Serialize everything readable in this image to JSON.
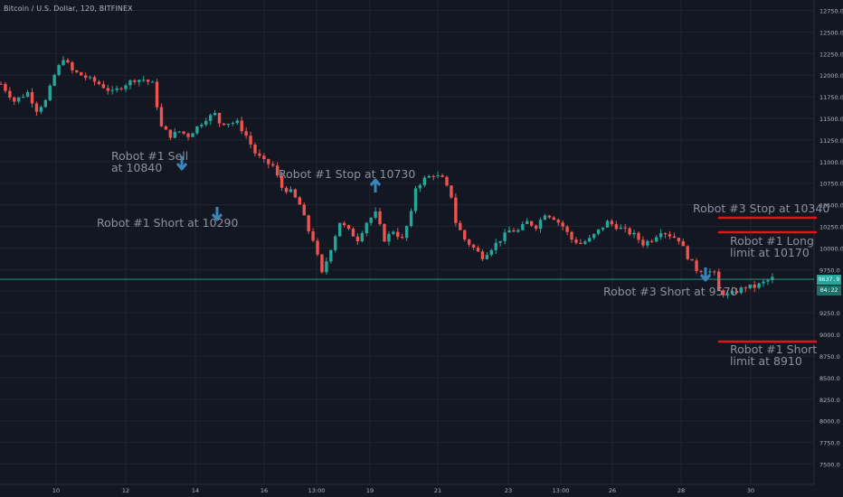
{
  "header": "Bitcoin / U.S. Dollar, 120, BITFINEX",
  "current_price": {
    "label": "9637.9",
    "countdown": "04:22"
  },
  "colors": {
    "bg": "#131722",
    "grid": "#1f2430",
    "up": "#26a69a",
    "down": "#ef5350",
    "arrow": "#3a84ba",
    "line": "#e0161e",
    "pricebadge": "#26a69a"
  },
  "chart_data": {
    "type": "candlestick",
    "y_ticks": [
      "12750.0",
      "12500.0",
      "12250.0",
      "12000.0",
      "11750.0",
      "11500.0",
      "11250.0",
      "11000.0",
      "10750.0",
      "10500.0",
      "10250.0",
      "10000.0",
      "9750.0",
      "9500.0",
      "9250.0",
      "9000.0",
      "8750.0",
      "8500.0",
      "8250.0",
      "8000.0",
      "7750.0",
      "7500.0"
    ],
    "x_ticks": [
      "10",
      "12",
      "14",
      "16",
      "13:00",
      "19",
      "21",
      "23",
      "13:00",
      "26",
      "28",
      "30"
    ],
    "ylim": [
      7400,
      12850
    ],
    "close_path": [
      [
        0,
        11900
      ],
      [
        3,
        11700
      ],
      [
        6,
        11800
      ],
      [
        8,
        11600
      ],
      [
        10,
        11700
      ],
      [
        12,
        12000
      ],
      [
        14,
        12200
      ],
      [
        16,
        12050
      ],
      [
        18,
        12000
      ],
      [
        20,
        11950
      ],
      [
        22,
        11900
      ],
      [
        25,
        11800
      ],
      [
        28,
        11900
      ],
      [
        30,
        11950
      ],
      [
        32,
        11950
      ],
      [
        34,
        11900
      ],
      [
        36,
        11400
      ],
      [
        38,
        11300
      ],
      [
        40,
        11350
      ],
      [
        42,
        11300
      ],
      [
        44,
        11400
      ],
      [
        46,
        11500
      ],
      [
        48,
        11550
      ],
      [
        49,
        11450
      ],
      [
        51,
        11450
      ],
      [
        53,
        11450
      ],
      [
        55,
        11300
      ],
      [
        57,
        11100
      ],
      [
        59,
        11000
      ],
      [
        61,
        10950
      ],
      [
        63,
        10700
      ],
      [
        65,
        10650
      ],
      [
        67,
        10500
      ],
      [
        69,
        10200
      ],
      [
        70,
        10100
      ],
      [
        71,
        9900
      ],
      [
        72,
        9700
      ],
      [
        74,
        10000
      ],
      [
        76,
        10300
      ],
      [
        78,
        10200
      ],
      [
        80,
        10100
      ],
      [
        82,
        10300
      ],
      [
        84,
        10400
      ],
      [
        86,
        10100
      ],
      [
        88,
        10200
      ],
      [
        90,
        10100
      ],
      [
        92,
        10400
      ],
      [
        93,
        10700
      ],
      [
        95,
        10800
      ],
      [
        97,
        10850
      ],
      [
        99,
        10800
      ],
      [
        101,
        10600
      ],
      [
        102,
        10300
      ],
      [
        104,
        10100
      ],
      [
        106,
        10000
      ],
      [
        108,
        9900
      ],
      [
        110,
        10000
      ],
      [
        112,
        10100
      ],
      [
        114,
        10200
      ],
      [
        116,
        10200
      ],
      [
        118,
        10300
      ],
      [
        120,
        10250
      ],
      [
        122,
        10400
      ],
      [
        124,
        10350
      ],
      [
        126,
        10250
      ],
      [
        128,
        10100
      ],
      [
        130,
        10050
      ],
      [
        132,
        10100
      ],
      [
        134,
        10200
      ],
      [
        136,
        10300
      ],
      [
        138,
        10250
      ],
      [
        140,
        10200
      ],
      [
        142,
        10150
      ],
      [
        144,
        10050
      ],
      [
        146,
        10100
      ],
      [
        148,
        10200
      ],
      [
        150,
        10150
      ],
      [
        152,
        10100
      ],
      [
        154,
        9900
      ],
      [
        156,
        9750
      ],
      [
        158,
        9750
      ],
      [
        160,
        9700
      ],
      [
        161,
        9500
      ],
      [
        163,
        9450
      ],
      [
        165,
        9500
      ],
      [
        167,
        9550
      ],
      [
        169,
        9550
      ],
      [
        171,
        9600
      ],
      [
        173,
        9650
      ]
    ],
    "annotations": [
      {
        "text": "Robot #1 Sell\nat 10840",
        "price": 10840,
        "dir": "down"
      },
      {
        "text": "Robot #1 Short at 10290",
        "price": 10290,
        "dir": "down"
      },
      {
        "text": "Robot #1 Stop at 10730",
        "price": 10730,
        "dir": "up"
      },
      {
        "text": "Robot #3 Stop at 10340",
        "price": 10340
      },
      {
        "text": "Robot #1 Long\nlimit at 10170",
        "price": 10170
      },
      {
        "text": "Robot #3 Short at 9570",
        "price": 9570,
        "dir": "down"
      },
      {
        "text": "Robot #1 Short\nlimit at 8910",
        "price": 8910
      }
    ],
    "price_line": 9637.9
  }
}
